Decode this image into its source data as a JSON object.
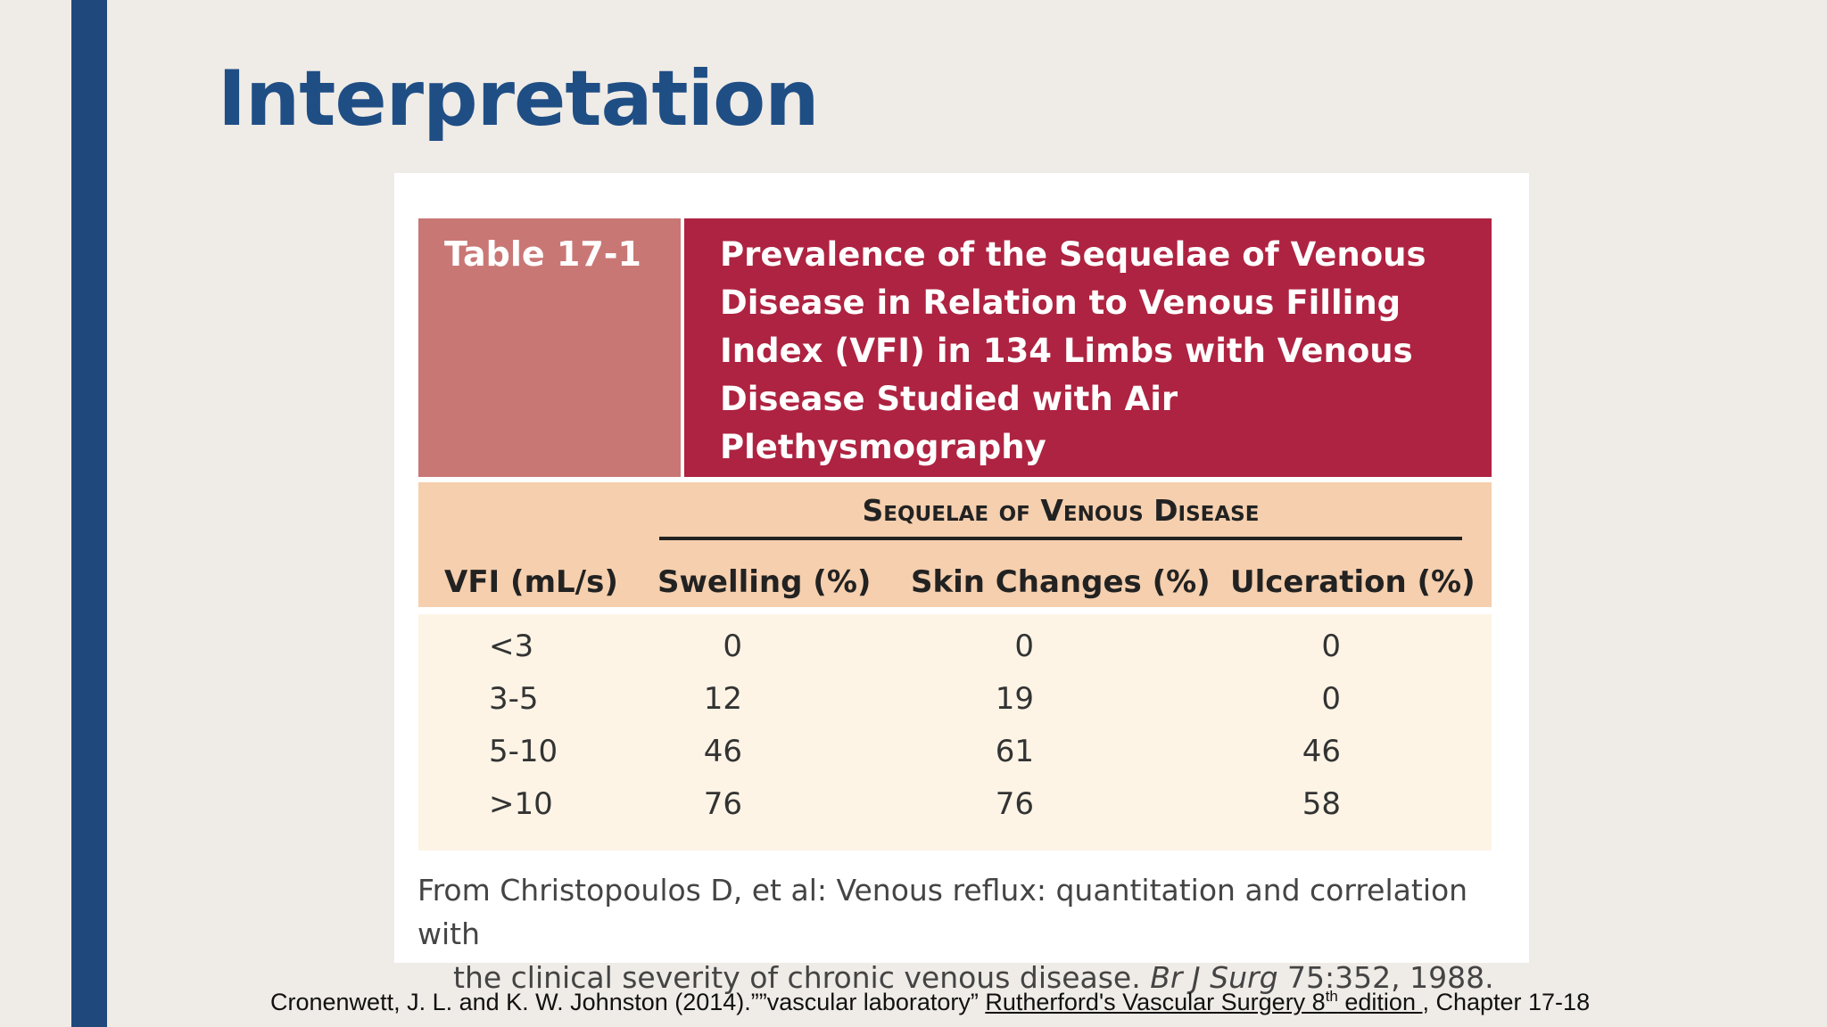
{
  "slide": {
    "title": "Interpretation",
    "accent_color": "#1f497d"
  },
  "table": {
    "label": "Table 17-1",
    "title_lines": [
      "Prevalence of the Sequelae of Venous",
      "Disease in Relation to Venous Filling",
      "Index (VFI) in 134 Limbs with Venous",
      "Disease Studied with Air",
      "Plethysmography"
    ],
    "group_header": "Sequelae of Venous Disease",
    "columns": [
      "VFI (mL/s)",
      "Swelling (%)",
      "Skin Changes (%)",
      "Ulceration (%)"
    ],
    "rows": [
      [
        "<3",
        "0",
        "0",
        "0"
      ],
      [
        "3-5",
        "12",
        "19",
        "0"
      ],
      [
        "5-10",
        "46",
        "61",
        "46"
      ],
      [
        ">10",
        "76",
        "76",
        "58"
      ]
    ],
    "source_line1": "From Christopoulos D, et al: Venous reflux: quantitation and correlation with",
    "source_line2_prefix": "the clinical severity of chronic venous disease. ",
    "source_journal": "Br J Surg",
    "source_line2_suffix": " 75:352, 1988."
  },
  "citation": {
    "prefix": "Cronenwett, J. L. and K. W. Johnston (2014).””vascular laboratory” ",
    "book": "Rutherford's Vascular Surgery 8",
    "book_sup": "th",
    "book_tail": " edition ",
    "suffix": ", Chapter 17-18"
  },
  "colors": {
    "header_dark": "#ae2341",
    "header_light": "#c97775",
    "column_band": "#f5cfae",
    "body_band": "#fdf4e6"
  }
}
